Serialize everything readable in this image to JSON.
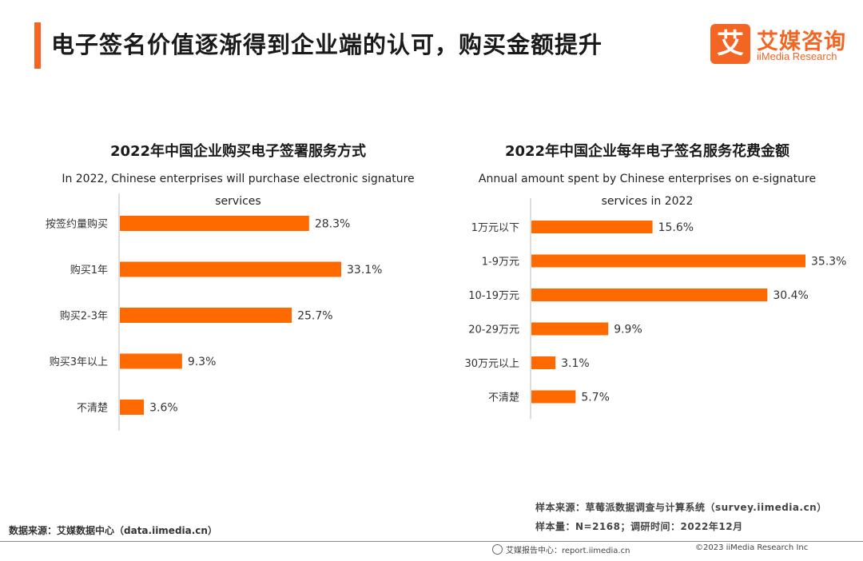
{
  "header": {
    "title": "电子签名价值逐渐得到企业端的认可，购买金额提升"
  },
  "logo": {
    "glyph": "艾",
    "cn": "艾媒咨询",
    "en": "iiMedia Research"
  },
  "colors": {
    "accent": "#f26522",
    "bar": "#ff6a00",
    "axis": "#bbbbbb"
  },
  "chart_data": [
    {
      "type": "bar",
      "orientation": "horizontal",
      "title": "2022年中国企业购买电子签署服务方式",
      "subtitle": "In 2022, Chinese enterprises will purchase electronic signature services",
      "categories": [
        "按签约量购买",
        "购买1年",
        "购买2-3年",
        "购买3年以上",
        "不清楚"
      ],
      "values": [
        28.3,
        33.1,
        25.7,
        9.3,
        3.6
      ],
      "value_labels": [
        "28.3%",
        "33.1%",
        "25.7%",
        "9.3%",
        "3.6%"
      ],
      "unit": "%",
      "xlim": [
        0,
        33.1
      ]
    },
    {
      "type": "bar",
      "orientation": "horizontal",
      "title": "2022年中国企业每年电子签名服务花费金额",
      "subtitle": "Annual amount spent by Chinese enterprises on e-signature services in 2022",
      "categories": [
        "1万元以下",
        "1-9万元",
        "10-19万元",
        "20-29万元",
        "30万元以上",
        "不清楚"
      ],
      "values": [
        15.6,
        35.3,
        30.4,
        9.9,
        3.1,
        5.7
      ],
      "value_labels": [
        "15.6%",
        "35.3%",
        "30.4%",
        "9.9%",
        "3.1%",
        "5.7%"
      ],
      "unit": "%",
      "xlim": [
        0,
        35.3
      ]
    }
  ],
  "sources": {
    "left": "数据来源：艾媒数据中心（data.iimedia.cn）",
    "sample_source": "样本来源：草莓派数据调查与计算系统（survey.iimedia.cn）",
    "sample_size": "样本量：N=2168；调研时间：2022年12月"
  },
  "footer": {
    "center": "艾媒报告中心：report.iimedia.cn",
    "copyright": "©2023  iiMedia Research  Inc"
  }
}
